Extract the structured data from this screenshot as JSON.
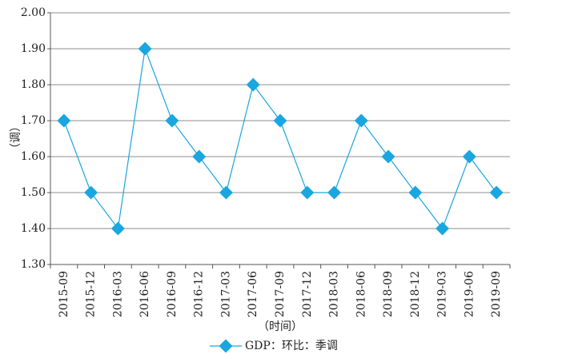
{
  "chart_data": {
    "type": "line",
    "categories": [
      "2015-09",
      "2015-12",
      "2016-03",
      "2016-06",
      "2016-09",
      "2016-12",
      "2017-03",
      "2017-06",
      "2017-09",
      "2017-12",
      "2018-03",
      "2018-06",
      "2018-09",
      "2018-12",
      "2019-03",
      "2019-06",
      "2019-09"
    ],
    "series": [
      {
        "name": "GDP：环比：季调",
        "values": [
          1.7,
          1.5,
          1.4,
          1.9,
          1.7,
          1.6,
          1.5,
          1.8,
          1.7,
          1.5,
          1.5,
          1.7,
          1.6,
          1.5,
          1.4,
          1.6,
          1.5
        ]
      }
    ],
    "yticks": [
      "1.30",
      "1.40",
      "1.50",
      "1.60",
      "1.70",
      "1.80",
      "1.90",
      "2.00"
    ],
    "ylim": [
      1.3,
      2.0
    ],
    "xlabel": "（时间）",
    "ylabel": "（调）",
    "grid": true,
    "legend_position": "bottom",
    "colors": {
      "series": "#1aa6e0",
      "grid": "#8c8c8c",
      "axis": "#555555"
    }
  }
}
